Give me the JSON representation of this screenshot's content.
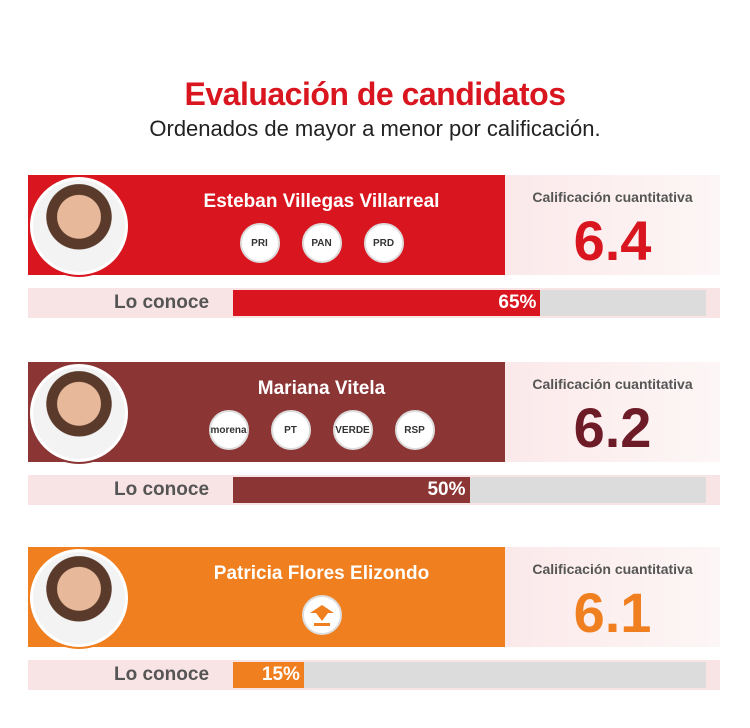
{
  "header": {
    "title": "Evaluación de candidatos",
    "subtitle": "Ordenados de mayor a menor por calificación."
  },
  "candidates": [
    {
      "name": "Esteban Villegas Villarreal",
      "parties": [
        "PRI",
        "PAN",
        "PRD"
      ],
      "rating_label": "Calificación cuantitativa",
      "rating": 6.4,
      "known_label": "Lo conoce",
      "known": 65,
      "known_value_label": "65%",
      "color": "#d9161f",
      "rating_color": "#d9161f"
    },
    {
      "name": "Mariana Vitela",
      "parties": [
        "morena",
        "PT",
        "VERDE",
        "RSP"
      ],
      "rating_label": "Calificación cuantitativa",
      "rating": 6.2,
      "known_label": "Lo conoce",
      "known": 50,
      "known_value_label": "50%",
      "color": "#8c3535",
      "rating_color": "#6e1b28"
    },
    {
      "name": "Patricia Flores Elizondo",
      "parties": [],
      "rating_label": "Calificación cuantitativa",
      "rating": 6.1,
      "known_label": "Lo conoce",
      "known": 15,
      "known_value_label": "15%",
      "color": "#f07f1f",
      "rating_color": "#f07f1f"
    }
  ],
  "known_scale": [
    0,
    100
  ]
}
